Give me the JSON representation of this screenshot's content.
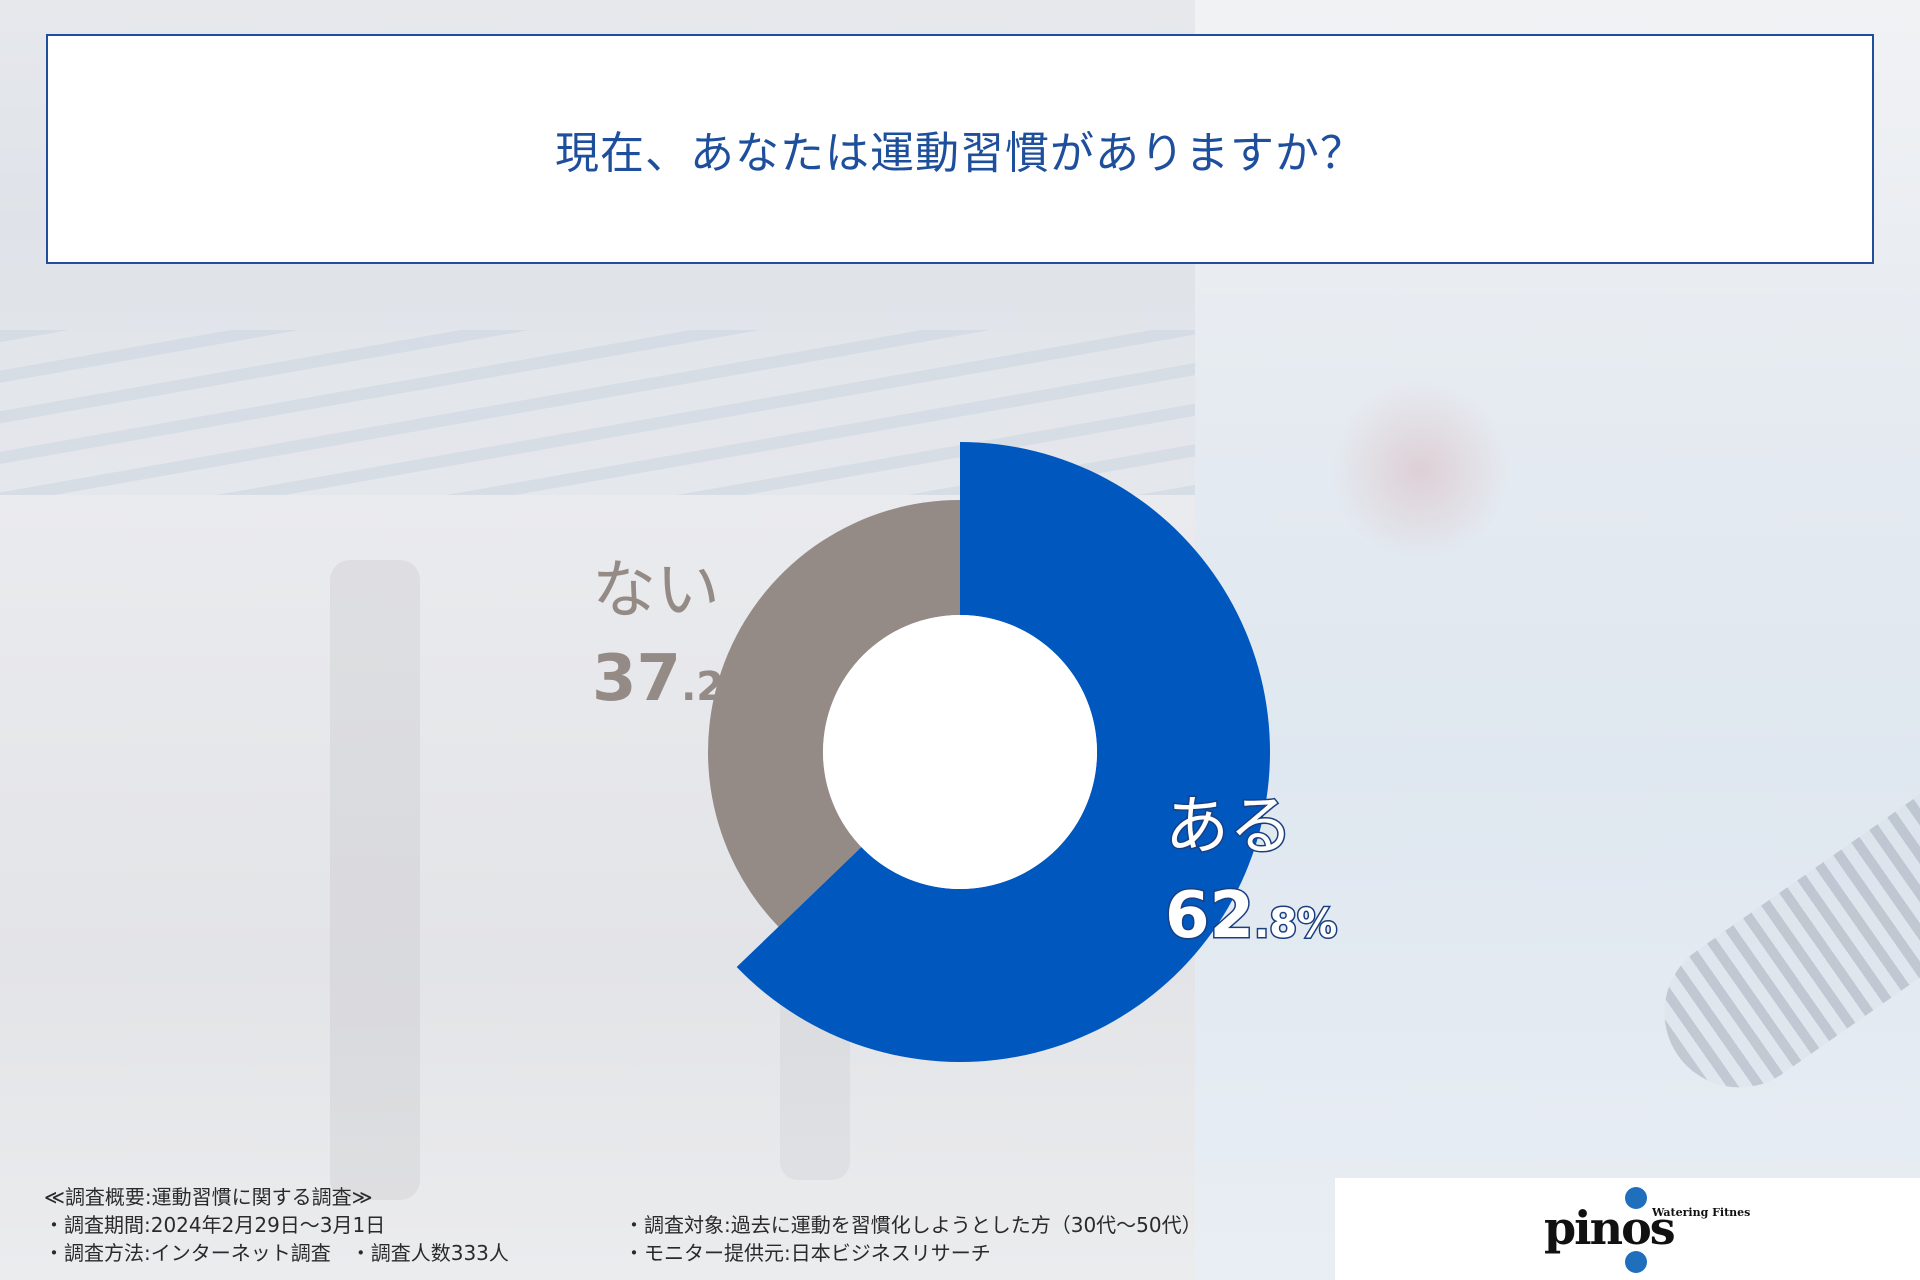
{
  "title": "現在、あなたは運動習慣がありますか？",
  "chart_data": {
    "type": "pie",
    "categories": [
      "ある",
      "ない"
    ],
    "values": [
      62.8,
      37.2
    ],
    "unit": "%",
    "colors": [
      "#0057be",
      "#948b86"
    ],
    "labels": [
      {
        "name": "ある",
        "int": "62",
        "dec": ".8%"
      },
      {
        "name": "ない",
        "int": "37",
        "dec": ".2%"
      }
    ]
  },
  "footer": {
    "heading": "≪調査概要:運動習慣に関する調査≫",
    "period": "・調査期間:2024年2月29日〜3月1日",
    "target": "・調査対象:過去に運動を習慣化しようとした方（30代〜50代）",
    "method": "・調査方法:インターネット調査　・調査人数333人",
    "provider": "・モニター提供元:日本ビジネスリサーチ"
  },
  "logo": {
    "text": "pinos",
    "tagline": "Watering Fitness",
    "colors": [
      "#1f6fbd",
      "#111111"
    ]
  }
}
